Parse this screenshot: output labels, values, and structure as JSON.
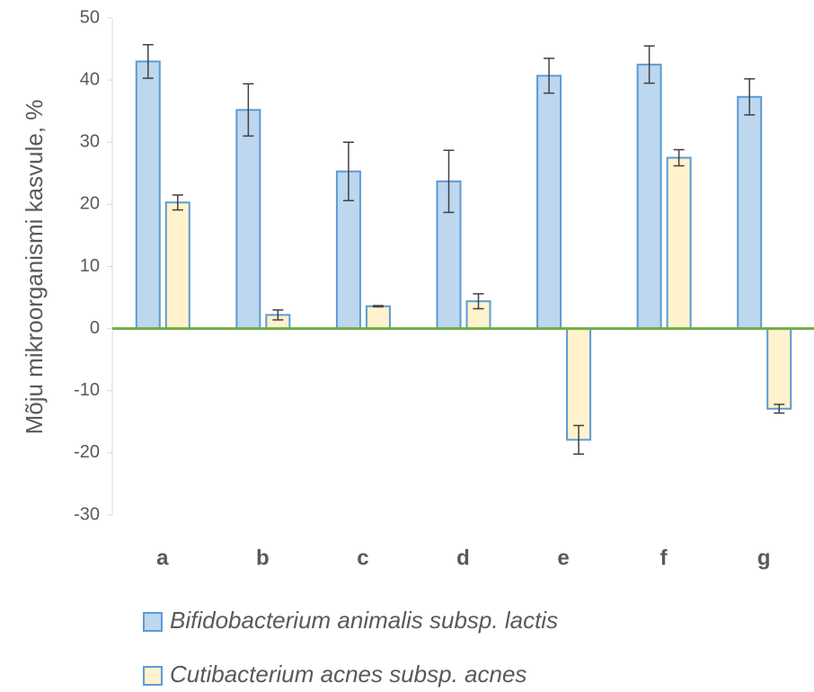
{
  "chart_data": {
    "type": "bar",
    "y_label": "Mõju mikroorganismi kasvule, %",
    "categories": [
      "a",
      "b",
      "c",
      "d",
      "e",
      "f",
      "g"
    ],
    "series": [
      {
        "name": "Bifidobacterium animalis subsp. lactis",
        "color": "#bdd7ee",
        "edge_color": "#5b9bd5",
        "values": [
          43,
          35.2,
          25.3,
          23.7,
          40.7,
          42.5,
          37.3
        ],
        "errors": [
          2.7,
          4.2,
          4.7,
          5,
          2.8,
          3,
          2.9
        ]
      },
      {
        "name": "Cutibacterium acnes subsp. acnes",
        "color": "#fff2cc",
        "edge_color": "#5b9bd5",
        "values": [
          20.3,
          2.2,
          3.6,
          4.4,
          -17.9,
          27.5,
          -12.9
        ],
        "errors": [
          1.2,
          0.8,
          0.1,
          1.2,
          2.3,
          1.3,
          0.7
        ]
      }
    ],
    "ylim": [
      -30,
      50
    ],
    "yticks": [
      -30,
      -20,
      -10,
      0,
      10,
      20,
      30,
      40,
      50
    ],
    "zero_line_color": "#70ad47",
    "grid": false
  }
}
